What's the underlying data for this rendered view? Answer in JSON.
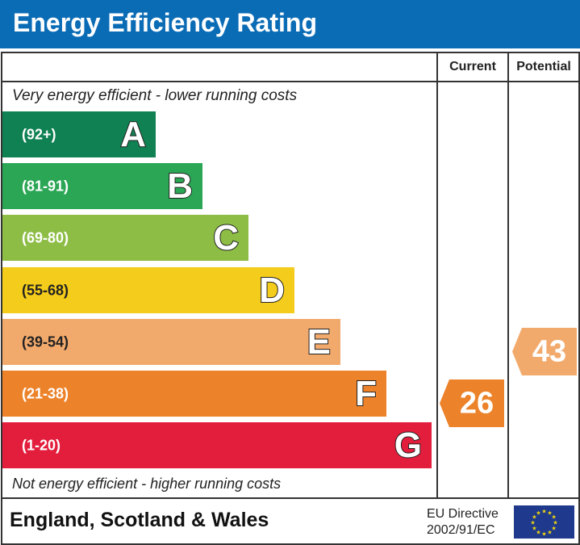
{
  "title": "Energy Efficiency Rating",
  "columns": {
    "current": "Current",
    "potential": "Potential"
  },
  "top_note": "Very energy efficient - lower running costs",
  "bottom_note": "Not energy efficient - higher running costs",
  "footer": {
    "region": "England, Scotland & Wales",
    "directive_line1": "EU Directive",
    "directive_line2": "2002/91/EC",
    "flag_icon": "eu-flag-icon"
  },
  "chart_data": {
    "type": "bar",
    "title": "Energy Efficiency Rating",
    "categories": [
      "A",
      "B",
      "C",
      "D",
      "E",
      "F",
      "G"
    ],
    "bands": [
      {
        "letter": "A",
        "range": "(92+)",
        "color": "#0f8152"
      },
      {
        "letter": "B",
        "range": "(81-91)",
        "color": "#2aa654"
      },
      {
        "letter": "C",
        "range": "(69-80)",
        "color": "#8dbd45"
      },
      {
        "letter": "D",
        "range": "(55-68)",
        "color": "#f4cc1b"
      },
      {
        "letter": "E",
        "range": "(39-54)",
        "color": "#f2aa6c"
      },
      {
        "letter": "F",
        "range": "(21-38)",
        "color": "#ec8229"
      },
      {
        "letter": "G",
        "range": "(1-20)",
        "color": "#e31d3c"
      }
    ],
    "current": {
      "value": 26,
      "band": "F",
      "color": "#ec8229"
    },
    "potential": {
      "value": 43,
      "band": "E",
      "color": "#f2aa6c"
    }
  }
}
